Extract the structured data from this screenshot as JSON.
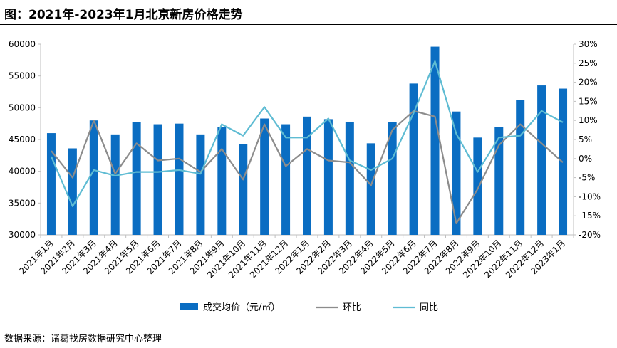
{
  "page": {
    "title": "图：2021年-2023年1月北京新房价格走势",
    "source": "数据来源：诸葛找房数据研究中心整理"
  },
  "colors": {
    "bar": "#0a6dc2",
    "mom_line": "#8c8c8c",
    "yoy_line": "#5fbcd3",
    "axis": "#bfbfbf"
  },
  "chart_data": {
    "type": "bar",
    "categories": [
      "2021年1月",
      "2021年2月",
      "2021年3月",
      "2021年4月",
      "2021年5月",
      "2021年6月",
      "2021年7月",
      "2021年8月",
      "2021年9月",
      "2021年10月",
      "2021年11月",
      "2021年12月",
      "2022年1月",
      "2022年2月",
      "2022年3月",
      "2022年4月",
      "2022年5月",
      "2022年6月",
      "2022年7月",
      "2022年8月",
      "2022年9月",
      "2022年10月",
      "2022年11月",
      "2022年12月",
      "2023年1月"
    ],
    "series": [
      {
        "name": "成交均价（元/㎡）",
        "type": "bar",
        "axis": "left",
        "values": [
          46000,
          43600,
          48000,
          45800,
          47700,
          47400,
          47500,
          45800,
          47000,
          44300,
          48300,
          47400,
          48600,
          48200,
          47800,
          44400,
          47700,
          53800,
          59600,
          49400,
          45300,
          47000,
          51200,
          53500,
          53000
        ]
      },
      {
        "name": "环比",
        "type": "line",
        "axis": "right",
        "values": [
          2.0,
          -5.0,
          10.0,
          -4.0,
          4.0,
          -0.5,
          0.0,
          -3.5,
          2.5,
          -5.5,
          9.0,
          -2.0,
          2.5,
          -0.5,
          -1.0,
          -7.0,
          7.5,
          12.5,
          11.0,
          -17.0,
          -8.0,
          3.5,
          9.0,
          4.0,
          -1.0
        ]
      },
      {
        "name": "同比",
        "type": "line",
        "axis": "right",
        "values": [
          0.5,
          -12.5,
          -3.0,
          -4.5,
          -3.5,
          -3.5,
          -3.0,
          -4.0,
          9.0,
          6.0,
          13.5,
          5.5,
          5.5,
          10.5,
          -0.5,
          -3.0,
          0.0,
          12.0,
          25.5,
          6.5,
          -3.5,
          5.5,
          6.0,
          12.5,
          9.5
        ]
      }
    ],
    "ylim_left": [
      30000,
      60000
    ],
    "yticks_left": [
      "30000",
      "35000",
      "40000",
      "45000",
      "50000",
      "55000",
      "60000"
    ],
    "ylim_right": [
      -20,
      30
    ],
    "yticks_right": [
      "-20%",
      "-15%",
      "-10%",
      "-5%",
      "0%",
      "5%",
      "10%",
      "15%",
      "20%",
      "25%",
      "30%"
    ],
    "legend": {
      "position": "bottom",
      "items": [
        "成交均价（元/㎡）",
        "环比",
        "同比"
      ]
    },
    "grid": false
  }
}
